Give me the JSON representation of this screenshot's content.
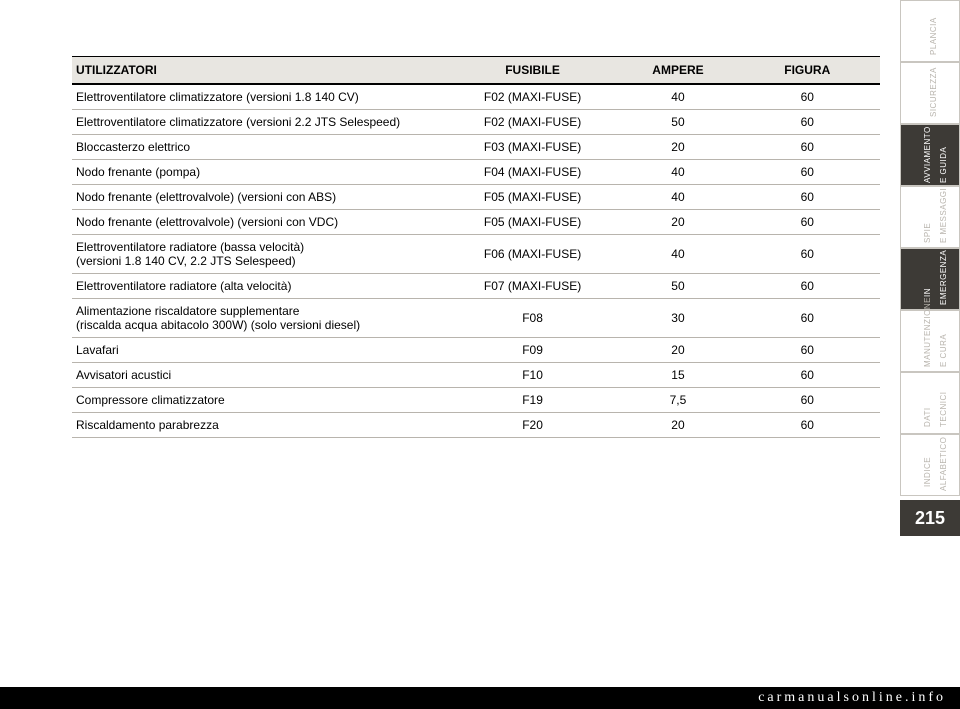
{
  "page_number": "215",
  "watermark": "carmanualsonline.info",
  "colors": {
    "tab_bg": "#ffffff",
    "tab_border": "#c9c6c0",
    "tab_text": "#b8b4ad",
    "tab_sel_bg": "#3d3a36",
    "tab_sel_text": "#ffffff",
    "header_bg": "#e8e6e1",
    "row_border": "#b8b4ad"
  },
  "side_tabs": [
    {
      "line1": "PLANCIA",
      "line2": "E COMANDI",
      "selected": false
    },
    {
      "line1": "SICUREZZA",
      "line2": "",
      "selected": false
    },
    {
      "line1": "AVVIAMENTO",
      "line2": "E GUIDA",
      "selected": true
    },
    {
      "line1": "SPIE",
      "line2": "E MESSAGGI",
      "selected": false
    },
    {
      "line1": "IN",
      "line2": "EMERGENZA",
      "selected": true
    },
    {
      "line1": "MANUTENZIONE",
      "line2": "E CURA",
      "selected": false
    },
    {
      "line1": "DATI",
      "line2": "TECNICI",
      "selected": false
    },
    {
      "line1": "INDICE",
      "line2": "ALFABETICO",
      "selected": false
    }
  ],
  "table": {
    "headers": [
      "UTILIZZATORI",
      "FUSIBILE",
      "AMPERE",
      "FIGURA"
    ],
    "rows": [
      [
        "Elettroventilatore climatizzatore (versioni 1.8 140 CV)",
        "F02 (MAXI-FUSE)",
        "40",
        "60"
      ],
      [
        "Elettroventilatore climatizzatore (versioni 2.2 JTS Selespeed)",
        "F02 (MAXI-FUSE)",
        "50",
        "60"
      ],
      [
        "Bloccasterzo elettrico",
        "F03 (MAXI-FUSE)",
        "20",
        "60"
      ],
      [
        "Nodo frenante (pompa)",
        "F04 (MAXI-FUSE)",
        "40",
        "60"
      ],
      [
        "Nodo frenante (elettrovalvole) (versioni con ABS)",
        "F05 (MAXI-FUSE)",
        "40",
        "60"
      ],
      [
        "Nodo frenante (elettrovalvole) (versioni con VDC)",
        "F05 (MAXI-FUSE)",
        "20",
        "60"
      ],
      [
        "Elettroventilatore radiatore (bassa velocità)\n(versioni 1.8 140 CV, 2.2 JTS Selespeed)",
        "F06 (MAXI-FUSE)",
        "40",
        "60"
      ],
      [
        "Elettroventilatore radiatore (alta velocità)",
        "F07 (MAXI-FUSE)",
        "50",
        "60"
      ],
      [
        "Alimentazione riscaldatore supplementare\n(riscalda acqua abitacolo 300W) (solo versioni diesel)",
        "F08",
        "30",
        "60"
      ],
      [
        "Lavafari",
        "F09",
        "20",
        "60"
      ],
      [
        "Avvisatori acustici",
        "F10",
        "15",
        "60"
      ],
      [
        "Compressore climatizzatore",
        "F19",
        "7,5",
        "60"
      ],
      [
        "Riscaldamento parabrezza",
        "F20",
        "20",
        "60"
      ]
    ]
  }
}
